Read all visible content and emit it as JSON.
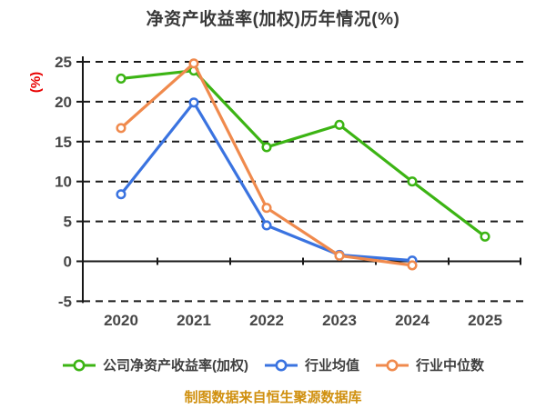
{
  "title": "净资产收益率(加权)历年情况(%)",
  "caption": "制图数据来自恒生聚源数据库",
  "colors": {
    "background": "#ffffff",
    "title_text": "#3a3a3a",
    "axis": "#171717",
    "grid": "#1a1a1a",
    "tick_label": "#474747",
    "y_axis_label": "#e80000",
    "caption_text": "#d0900f",
    "series_company": "#3cb414",
    "series_mean": "#3a73e0",
    "series_median": "#f08a4d"
  },
  "chart_data": {
    "type": "line",
    "title": "净资产收益率(加权)历年情况(%)",
    "xlabel": "",
    "ylabel": "(%)",
    "categories": [
      "2020",
      "2021",
      "2022",
      "2023",
      "2024",
      "2025"
    ],
    "yticks": [
      25,
      20,
      15,
      10,
      5,
      0,
      -5
    ],
    "ylim": [
      -5,
      25
    ],
    "grid": "horizontal-dashed",
    "legend_position": "bottom",
    "marker": "circle-white-fill",
    "series": [
      {
        "name": "公司净资产收益率(加权)",
        "color": "#3cb414",
        "values": [
          22.9,
          23.9,
          14.3,
          17.1,
          10.0,
          3.1
        ]
      },
      {
        "name": "行业均值",
        "color": "#3a73e0",
        "values": [
          8.4,
          19.9,
          4.5,
          0.8,
          0.1,
          null
        ]
      },
      {
        "name": "行业中位数",
        "color": "#f08a4d",
        "values": [
          16.7,
          24.8,
          6.7,
          0.7,
          -0.5,
          null
        ]
      }
    ]
  }
}
